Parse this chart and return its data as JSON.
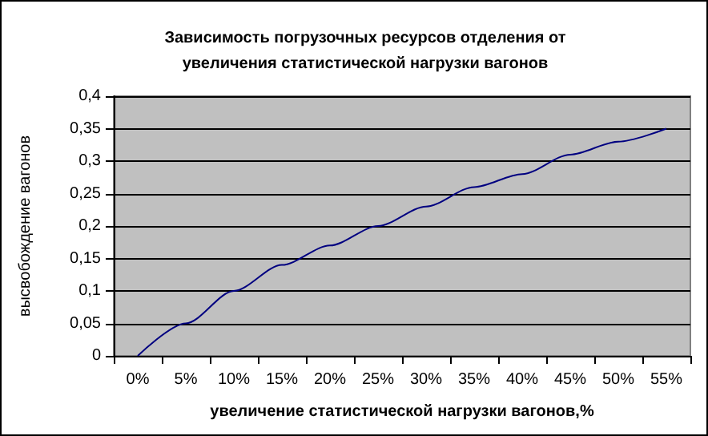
{
  "chart_data": {
    "type": "line",
    "title": "Зависимость погрузочных ресурсов отделения от\nувеличения статистической нагрузки вагонов",
    "xlabel": "увеличение статистической нагрузки вагонов,%",
    "ylabel": "высвобождение вагонов",
    "categories": [
      "0%",
      "5%",
      "10%",
      "15%",
      "20%",
      "25%",
      "30%",
      "35%",
      "40%",
      "45%",
      "50%",
      "55%"
    ],
    "series": [
      {
        "color": "#000080",
        "values": [
          0,
          0.05,
          0.1,
          0.14,
          0.17,
          0.2,
          0.23,
          0.26,
          0.28,
          0.31,
          0.33,
          0.35
        ]
      }
    ],
    "ylim": [
      0,
      0.4
    ],
    "yticks": [
      {
        "value": 0,
        "label": "0"
      },
      {
        "value": 0.05,
        "label": "0,05"
      },
      {
        "value": 0.1,
        "label": "0,1"
      },
      {
        "value": 0.15,
        "label": "0,15"
      },
      {
        "value": 0.2,
        "label": "0,2"
      },
      {
        "value": 0.25,
        "label": "0,25"
      },
      {
        "value": 0.3,
        "label": "0,3"
      },
      {
        "value": 0.35,
        "label": "0,35"
      },
      {
        "value": 0.4,
        "label": "0,4"
      }
    ],
    "grid": "y",
    "marker": "none",
    "line_style": "solid"
  }
}
